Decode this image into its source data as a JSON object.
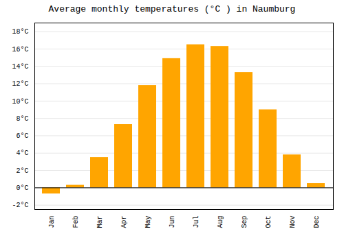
{
  "chart_data": {
    "type": "bar",
    "title": "Average monthly temperatures (°C ) in Naumburg",
    "categories": [
      "Jan",
      "Feb",
      "Mar",
      "Apr",
      "May",
      "Jun",
      "Jul",
      "Aug",
      "Sep",
      "Oct",
      "Nov",
      "Dec"
    ],
    "values": [
      -0.7,
      0.3,
      3.5,
      7.3,
      11.8,
      14.9,
      16.5,
      16.3,
      13.3,
      9.0,
      3.8,
      0.5
    ],
    "color": "#FFA500",
    "ylim": [
      -2.5,
      19
    ],
    "yticks": [
      {
        "value": -2,
        "label": "-2°C"
      },
      {
        "value": 0,
        "label": "0°C"
      },
      {
        "value": 2,
        "label": "2°C"
      },
      {
        "value": 4,
        "label": "4°C"
      },
      {
        "value": 6,
        "label": "6°C"
      },
      {
        "value": 8,
        "label": "8°C"
      },
      {
        "value": 10,
        "label": "10°C"
      },
      {
        "value": 12,
        "label": "12°C"
      },
      {
        "value": 14,
        "label": "14°C"
      },
      {
        "value": 16,
        "label": "16°C"
      },
      {
        "value": 18,
        "label": "18°C"
      }
    ],
    "grid": true
  }
}
